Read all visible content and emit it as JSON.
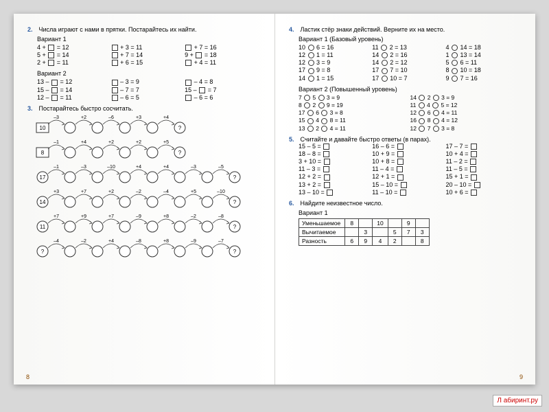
{
  "leftPage": {
    "task2": {
      "num": "2.",
      "title": "Числа играют с нами в прятки. Постарайтесь их найти.",
      "variant1": "Вариант 1",
      "v1rows": [
        [
          "4 + ",
          " = 12",
          "",
          " + 3 = 11",
          "",
          " + 7 = 16"
        ],
        [
          "5 + ",
          " = 14",
          "",
          " + 7 = 14",
          "9 + ",
          " = 18"
        ],
        [
          "2 + ",
          " = 11",
          "",
          " + 6 = 15",
          "",
          " + 4 = 11"
        ]
      ],
      "variant2": "Вариант 2",
      "v2rows": [
        [
          "13 – ",
          " = 12",
          "",
          " – 3 = 9",
          "",
          " – 4 = 8"
        ],
        [
          "15 – ",
          " = 14",
          "",
          " – 7 = 7",
          "15 – ",
          " = 7"
        ],
        [
          "12 – ",
          " = 11",
          "",
          " – 6 = 5",
          "",
          " – 6 = 6"
        ]
      ]
    },
    "task3": {
      "num": "3.",
      "title": "Постарайтесь быстро сосчитать.",
      "chains": [
        {
          "start": "10",
          "ops": [
            "–3",
            "+2",
            "–6",
            "+3",
            "+4"
          ],
          "startBoxed": true
        },
        {
          "start": "8",
          "ops": [
            "–1",
            "+4",
            "+2",
            "+2",
            "+5"
          ],
          "startBoxed": true
        },
        {
          "start": "17",
          "ops": [
            "–1",
            "–3",
            "–10",
            "+4",
            "+4",
            "–3",
            "–5"
          ],
          "startBoxed": false
        },
        {
          "start": "14",
          "ops": [
            "+3",
            "+7",
            "+2",
            "–2",
            "–4",
            "+5",
            "–10"
          ],
          "startBoxed": false
        },
        {
          "start": "11",
          "ops": [
            "+7",
            "+9",
            "+7",
            "–9",
            "+8",
            "–2",
            "–8"
          ],
          "startBoxed": false
        },
        {
          "start": "?",
          "ops": [
            "–4",
            "–2",
            "+4",
            "–8",
            "+8",
            "–9",
            "–7"
          ],
          "startBoxed": false,
          "reverse": true
        }
      ]
    },
    "pagenum": "8"
  },
  "rightPage": {
    "task4": {
      "num": "4.",
      "title": "Ластик стёр знаки действий. Верните их на место.",
      "variant1": "Вариант 1 (Базовый уровень)",
      "v1rows": [
        [
          "10 ",
          " 6 = 16",
          "11 ",
          " 2 = 13",
          "4 ",
          " 14 = 18"
        ],
        [
          "12 ",
          " 1 = 11",
          "14 ",
          " 2 = 16",
          "1 ",
          " 13 = 14"
        ],
        [
          "12 ",
          " 3 = 9",
          "14 ",
          " 2 = 12",
          "5 ",
          " 6 = 11"
        ],
        [
          "17 ",
          " 9 = 8",
          "17 ",
          " 7 = 10",
          "8 ",
          " 10 = 18"
        ],
        [
          "14 ",
          " 1 = 15",
          "17 ",
          " 10 = 7",
          "9 ",
          " 7 = 16"
        ]
      ],
      "variant2": "Вариант 2 (Повышенный уровень)",
      "v2rows": [
        [
          "7 ",
          " 5 ",
          " 3 = 9",
          "14 ",
          " 2 ",
          " 3 = 9"
        ],
        [
          "8 ",
          " 2 ",
          " 9 = 19",
          "11 ",
          " 4 ",
          " 5 = 12"
        ],
        [
          "17 ",
          " 6 ",
          " 3 = 8",
          "12 ",
          " 6 ",
          " 4 = 11"
        ],
        [
          "15 ",
          " 4 ",
          " 8 = 11",
          "16 ",
          " 8 ",
          " 4 = 12"
        ],
        [
          "13 ",
          " 2 ",
          " 4 = 11",
          "12 ",
          " 7 ",
          " 3 = 8"
        ]
      ]
    },
    "task5": {
      "num": "5.",
      "title": "Считайте и давайте быстро ответы (в парах).",
      "rows": [
        [
          "15 – 5 =",
          "16 – 6 =",
          "17 – 7 ="
        ],
        [
          "18 – 8 =",
          "10 + 9 =",
          "10 + 4 ="
        ],
        [
          "3 + 10 =",
          "10 + 8 =",
          "11 – 2 ="
        ],
        [
          "11 – 3 =",
          "11 – 4 =",
          "11 – 5 ="
        ],
        [
          "12 + 2 =",
          "12 + 1 =",
          "15 + 1 ="
        ],
        [
          "13 + 2 =",
          "15 – 10 =",
          "20 – 10 ="
        ],
        [
          "13 – 10 =",
          "11 – 10 =",
          "10 + 6 ="
        ]
      ]
    },
    "task6": {
      "num": "6.",
      "title": "Найдите неизвестное число.",
      "variant1": "Вариант 1",
      "headers": [
        "Уменьшаемое",
        "Вычитаемое",
        "Разность"
      ],
      "cols": [
        [
          "8",
          "",
          "6"
        ],
        [
          "",
          "3",
          "9"
        ],
        [
          "10",
          "",
          "4"
        ],
        [
          "",
          "5",
          "2"
        ],
        [
          "9",
          "7",
          ""
        ],
        [
          "",
          "3",
          "8"
        ]
      ]
    },
    "pagenum": "9"
  },
  "watermark": "Л абиринт.ру"
}
